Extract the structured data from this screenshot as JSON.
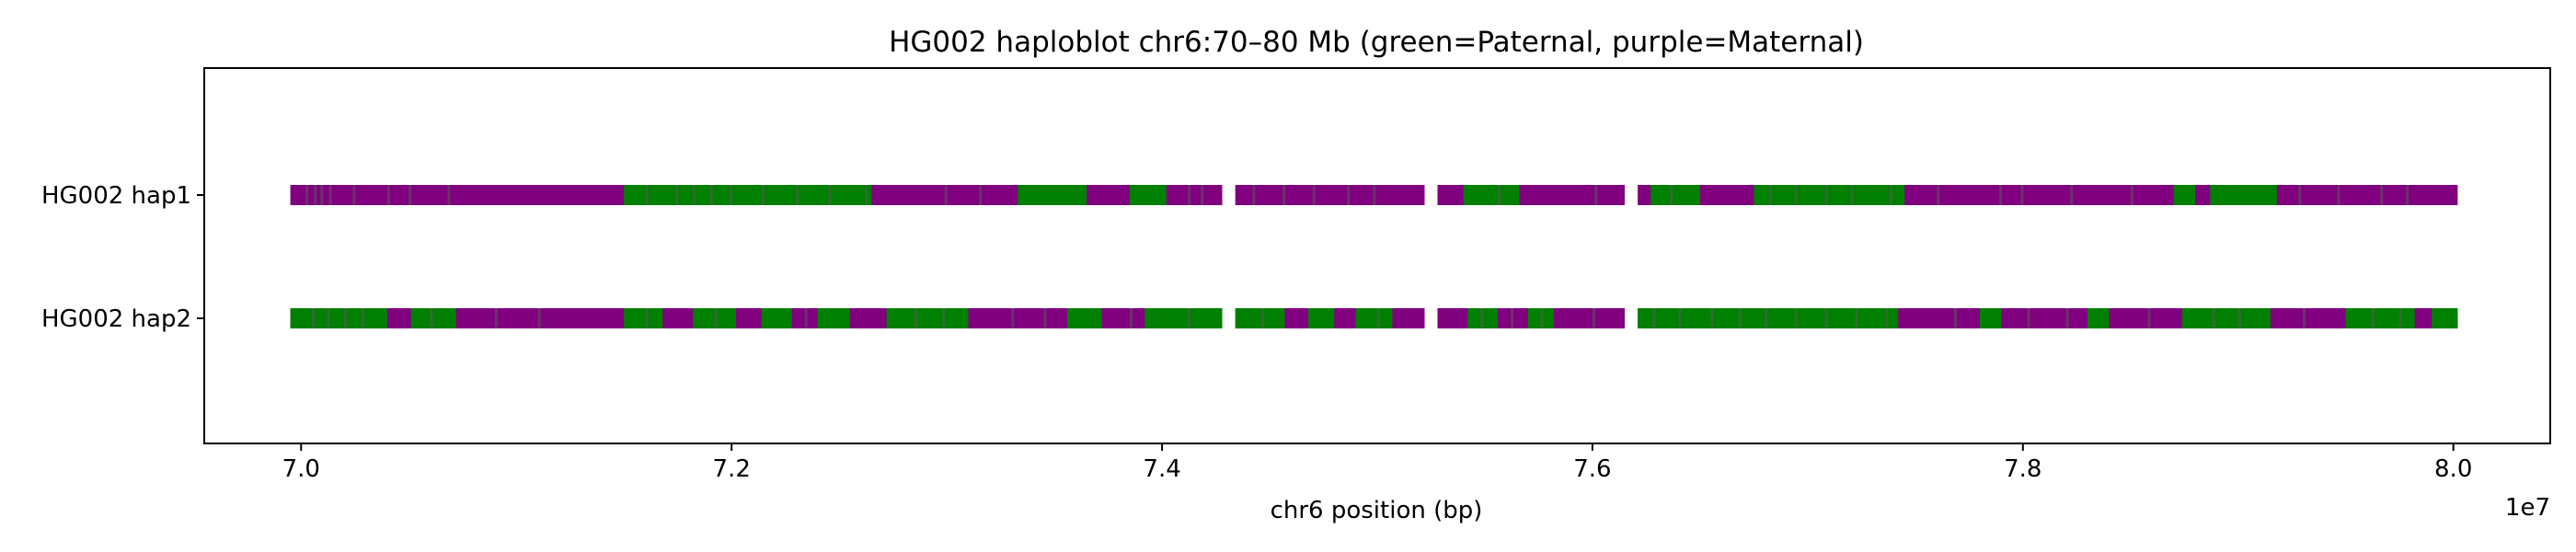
{
  "chart_data": {
    "type": "haploblot",
    "title": "HG002 haploblot chr6:70–80 Mb (green=Paternal, purple=Maternal)",
    "xlabel": "chr6 position (bp)",
    "x_offset_label": "1e7",
    "x_ticks": [
      7.0,
      7.2,
      7.4,
      7.6,
      7.8,
      8.0
    ],
    "x_tick_labels": [
      "7.0",
      "7.2",
      "7.4",
      "7.6",
      "7.8",
      "8.0"
    ],
    "xlim": [
      6.955,
      8.045
    ],
    "x_units": "1e7 bp",
    "y_categories": [
      "HG002 hap1",
      "HG002 hap2"
    ],
    "colors": {
      "Paternal": "#008000",
      "Maternal": "#800080"
    },
    "grid": false,
    "gaps": [
      [
        7.428,
        7.434
      ],
      [
        7.522,
        7.528
      ],
      [
        7.615,
        7.621
      ]
    ],
    "tracks": [
      {
        "name": "HG002 hap1",
        "segments": [
          [
            6.995,
            7.428,
            "Maternal"
          ],
          [
            7.434,
            7.522,
            "Maternal"
          ],
          [
            7.528,
            7.615,
            "Maternal"
          ],
          [
            7.621,
            8.002,
            "Maternal"
          ],
          [
            7.15,
            7.265,
            "Paternal"
          ],
          [
            7.333,
            7.365,
            "Paternal"
          ],
          [
            7.385,
            7.402,
            "Paternal"
          ],
          [
            7.54,
            7.566,
            "Paternal"
          ],
          [
            7.627,
            7.65,
            "Paternal"
          ],
          [
            7.675,
            7.745,
            "Paternal"
          ],
          [
            7.87,
            7.88,
            "Paternal"
          ],
          [
            7.887,
            7.918,
            "Paternal"
          ]
        ],
        "minor_switches": [
          7.002,
          7.006,
          7.009,
          7.013,
          7.024,
          7.04,
          7.05,
          7.068,
          7.16,
          7.174,
          7.182,
          7.19,
          7.199,
          7.214,
          7.23,
          7.245,
          7.262,
          7.299,
          7.315,
          7.412,
          7.418,
          7.442,
          7.456,
          7.47,
          7.486,
          7.498,
          7.556,
          7.601,
          7.636,
          7.682,
          7.694,
          7.708,
          7.72,
          7.738,
          7.76,
          7.789,
          7.799,
          7.822,
          7.85,
          7.928,
          7.946,
          7.966,
          7.978
        ]
      },
      {
        "name": "HG002 hap2",
        "segments": [
          [
            6.995,
            7.428,
            "Maternal"
          ],
          [
            7.434,
            7.522,
            "Maternal"
          ],
          [
            7.528,
            7.615,
            "Maternal"
          ],
          [
            7.621,
            8.002,
            "Maternal"
          ],
          [
            6.995,
            7.04,
            "Paternal"
          ],
          [
            7.051,
            7.072,
            "Paternal"
          ],
          [
            7.15,
            7.168,
            "Paternal"
          ],
          [
            7.182,
            7.202,
            "Paternal"
          ],
          [
            7.214,
            7.228,
            "Paternal"
          ],
          [
            7.24,
            7.255,
            "Paternal"
          ],
          [
            7.272,
            7.31,
            "Paternal"
          ],
          [
            7.356,
            7.372,
            "Paternal"
          ],
          [
            7.392,
            7.428,
            "Paternal"
          ],
          [
            7.434,
            7.457,
            "Paternal"
          ],
          [
            7.468,
            7.48,
            "Paternal"
          ],
          [
            7.49,
            7.507,
            "Paternal"
          ],
          [
            7.542,
            7.556,
            "Paternal"
          ],
          [
            7.57,
            7.582,
            "Paternal"
          ],
          [
            7.621,
            7.742,
            "Paternal"
          ],
          [
            7.78,
            7.79,
            "Paternal"
          ],
          [
            7.83,
            7.84,
            "Paternal"
          ],
          [
            7.874,
            7.915,
            "Paternal"
          ],
          [
            7.95,
            7.982,
            "Paternal"
          ],
          [
            7.99,
            8.002,
            "Paternal"
          ]
        ],
        "minor_switches": [
          7.005,
          7.012,
          7.02,
          7.028,
          7.06,
          7.09,
          7.11,
          7.16,
          7.192,
          7.234,
          7.285,
          7.298,
          7.33,
          7.345,
          7.385,
          7.412,
          7.446,
          7.5,
          7.548,
          7.562,
          7.576,
          7.6,
          7.628,
          7.64,
          7.655,
          7.668,
          7.68,
          7.694,
          7.708,
          7.722,
          7.736,
          7.768,
          7.802,
          7.82,
          7.858,
          7.888,
          7.9,
          7.93,
          7.962,
          7.975
        ]
      }
    ]
  }
}
